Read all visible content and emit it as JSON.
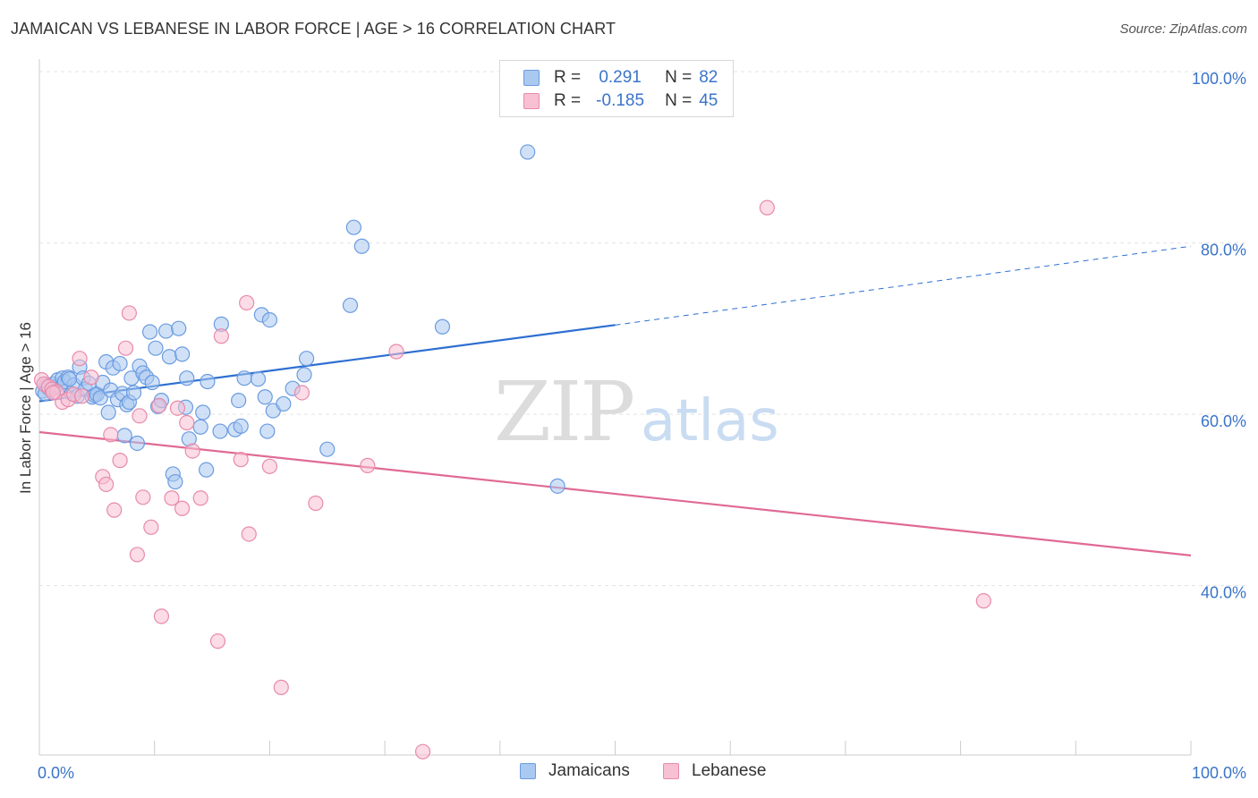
{
  "header": {
    "title": "JAMAICAN VS LEBANESE IN LABOR FORCE | AGE > 16 CORRELATION CHART",
    "source": "Source: ZipAtlas.com"
  },
  "watermark": {
    "zip": "ZIP",
    "atlas": "atlas"
  },
  "legend_top": [
    {
      "r_label": "R =",
      "r_value": "0.291",
      "n_label": "N =",
      "n_value": "82"
    },
    {
      "r_label": "R =",
      "r_value": "-0.185",
      "n_label": "N =",
      "n_value": "45"
    }
  ],
  "legend_bottom": [
    {
      "label": "Jamaicans"
    },
    {
      "label": "Lebanese"
    }
  ],
  "colors": {
    "jamaicans_fill": "#aac9f1",
    "jamaicans_stroke": "#6b9be0",
    "jamaicans_line": "#2e6fd1",
    "lebanese_fill": "#f7c0d3",
    "lebanese_stroke": "#e88aaa",
    "lebanese_line": "#e06a95",
    "axis_label": "#3a74c9",
    "grid": "#e3e3e3"
  },
  "chart_data": {
    "type": "scatter",
    "title": "JAMAICAN VS LEBANESE IN LABOR FORCE | AGE > 16 CORRELATION CHART",
    "xlabel": "",
    "ylabel": "In Labor Force | Age > 16",
    "xlim": [
      0,
      100
    ],
    "ylim": [
      22,
      102
    ],
    "x_tick_labels": [
      "0.0%",
      "100.0%"
    ],
    "y_ticks": [
      40,
      60,
      80,
      100
    ],
    "y_tick_labels": [
      "40.0%",
      "60.0%",
      "80.0%",
      "100.0%"
    ],
    "grid": true,
    "legend_position": "top-center",
    "series": [
      {
        "name": "Jamaicans",
        "R": 0.291,
        "N": 82,
        "trend": {
          "x0": 0,
          "y0": 63.3,
          "x1": 50,
          "y1": 72.2,
          "dashed_to": 100,
          "y_dashed_end": 81.4
        },
        "points": [
          [
            0.3,
            64.5
          ],
          [
            0.6,
            65.1
          ],
          [
            0.8,
            64.8
          ],
          [
            1.0,
            64.6
          ],
          [
            1.2,
            65.3
          ],
          [
            1.4,
            65.0
          ],
          [
            1.6,
            65.8
          ],
          [
            1.8,
            64.9
          ],
          [
            2.0,
            66.0
          ],
          [
            2.2,
            65.6
          ],
          [
            2.5,
            66.1
          ],
          [
            2.8,
            64.2
          ],
          [
            3.0,
            65.2
          ],
          [
            3.3,
            63.9
          ],
          [
            3.5,
            67.3
          ],
          [
            3.8,
            66.0
          ],
          [
            4.0,
            64.7
          ],
          [
            4.3,
            65.4
          ],
          [
            4.6,
            63.8
          ],
          [
            4.8,
            64.0
          ],
          [
            5.0,
            64.1
          ],
          [
            5.3,
            63.7
          ],
          [
            5.5,
            65.5
          ],
          [
            5.8,
            67.9
          ],
          [
            6.0,
            62.0
          ],
          [
            6.2,
            64.6
          ],
          [
            6.4,
            67.2
          ],
          [
            6.8,
            63.5
          ],
          [
            7.0,
            67.7
          ],
          [
            7.2,
            64.2
          ],
          [
            7.4,
            59.3
          ],
          [
            7.6,
            62.9
          ],
          [
            7.8,
            63.2
          ],
          [
            8.0,
            66.0
          ],
          [
            8.2,
            64.3
          ],
          [
            8.5,
            58.4
          ],
          [
            8.7,
            67.4
          ],
          [
            9.0,
            66.6
          ],
          [
            9.3,
            66.1
          ],
          [
            9.6,
            71.4
          ],
          [
            9.8,
            65.5
          ],
          [
            10.1,
            69.5
          ],
          [
            10.3,
            62.7
          ],
          [
            10.6,
            63.4
          ],
          [
            11.0,
            71.5
          ],
          [
            11.3,
            68.5
          ],
          [
            11.6,
            54.8
          ],
          [
            11.8,
            53.9
          ],
          [
            12.1,
            71.8
          ],
          [
            12.4,
            68.8
          ],
          [
            12.7,
            62.6
          ],
          [
            12.8,
            66.0
          ],
          [
            13.0,
            58.9
          ],
          [
            14.0,
            60.3
          ],
          [
            14.2,
            62.0
          ],
          [
            14.5,
            55.3
          ],
          [
            14.6,
            65.6
          ],
          [
            15.7,
            59.8
          ],
          [
            15.8,
            72.3
          ],
          [
            17.0,
            60.0
          ],
          [
            17.3,
            63.4
          ],
          [
            17.5,
            60.4
          ],
          [
            17.8,
            66.0
          ],
          [
            19.0,
            65.9
          ],
          [
            19.3,
            73.4
          ],
          [
            19.6,
            63.8
          ],
          [
            19.8,
            59.8
          ],
          [
            20.0,
            72.8
          ],
          [
            20.3,
            62.2
          ],
          [
            21.2,
            63.0
          ],
          [
            22.0,
            64.8
          ],
          [
            23.0,
            66.4
          ],
          [
            23.2,
            68.3
          ],
          [
            25.0,
            57.7
          ],
          [
            27.0,
            74.5
          ],
          [
            27.3,
            83.6
          ],
          [
            28.0,
            81.4
          ],
          [
            35.0,
            72.0
          ],
          [
            42.4,
            92.4
          ],
          [
            45.0,
            53.4
          ],
          [
            0.5,
            64.2
          ],
          [
            2.6,
            65.9
          ]
        ]
      },
      {
        "name": "Lebanese",
        "R": -0.185,
        "N": 45,
        "trend": {
          "x0": 0,
          "y0": 59.7,
          "x1": 100,
          "y1": 45.3
        },
        "points": [
          [
            0.2,
            65.8
          ],
          [
            0.4,
            65.3
          ],
          [
            0.8,
            65.0
          ],
          [
            1.1,
            64.7
          ],
          [
            1.5,
            64.4
          ],
          [
            2.0,
            63.2
          ],
          [
            2.5,
            63.5
          ],
          [
            3.0,
            64.1
          ],
          [
            3.5,
            68.3
          ],
          [
            3.7,
            63.9
          ],
          [
            4.5,
            66.1
          ],
          [
            5.5,
            54.5
          ],
          [
            5.8,
            53.6
          ],
          [
            6.2,
            59.4
          ],
          [
            6.5,
            50.6
          ],
          [
            7.0,
            56.4
          ],
          [
            7.5,
            69.5
          ],
          [
            7.8,
            73.6
          ],
          [
            8.5,
            45.4
          ],
          [
            8.7,
            61.6
          ],
          [
            9.0,
            52.1
          ],
          [
            9.7,
            48.6
          ],
          [
            10.4,
            62.8
          ],
          [
            10.6,
            38.2
          ],
          [
            11.5,
            52.0
          ],
          [
            12.0,
            62.5
          ],
          [
            12.4,
            50.8
          ],
          [
            12.8,
            60.8
          ],
          [
            13.3,
            57.5
          ],
          [
            14.0,
            52.0
          ],
          [
            15.5,
            35.3
          ],
          [
            15.8,
            70.9
          ],
          [
            17.5,
            56.5
          ],
          [
            18.0,
            74.8
          ],
          [
            18.2,
            47.8
          ],
          [
            20.0,
            55.7
          ],
          [
            21.0,
            29.9
          ],
          [
            22.8,
            64.3
          ],
          [
            24.0,
            51.4
          ],
          [
            28.5,
            55.8
          ],
          [
            31.0,
            69.1
          ],
          [
            33.3,
            22.4
          ],
          [
            63.2,
            85.9
          ],
          [
            82.0,
            40.0
          ],
          [
            1.2,
            64.3
          ]
        ]
      }
    ]
  }
}
